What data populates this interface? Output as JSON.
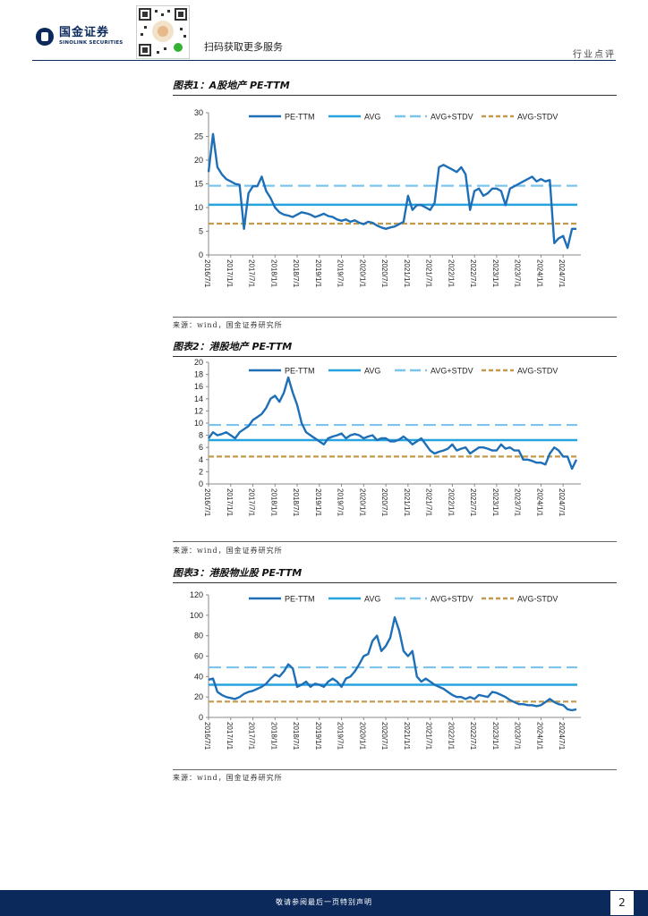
{
  "header": {
    "company_cn": "国金证券",
    "company_en": "SINOLINK SECURITIES",
    "qr_caption": "扫码获取更多服务",
    "report_type": "行业点评"
  },
  "figures": [
    {
      "title": "图表1：A股地产 PE-TTM",
      "source": "来源：wind，国金证券研究所"
    },
    {
      "title": "图表2：港股地产 PE-TTM",
      "source": "来源：wind，国金证券研究所"
    },
    {
      "title": "图表3：港股物业股 PE-TTM",
      "source": ""
    }
  ],
  "source_last": "来源：wind，国金证券研究所",
  "footer": {
    "disclaimer": "敬请参阅最后一页特别声明",
    "page_number": "2"
  },
  "colors": {
    "pe": "#1f6fb7",
    "avg": "#27a3e0",
    "avg_plus": "#7cc4ee",
    "avg_minus": "#c49a4a",
    "brand": "#0b2a5b"
  },
  "chart_data": [
    {
      "type": "line",
      "title": "A股地产 PE-TTM",
      "legend": [
        "PE-TTM",
        "AVG",
        "AVG+STDV",
        "AVG-STDV"
      ],
      "x_tick_labels": [
        "2016/7/1",
        "2017/1/1",
        "2017/7/1",
        "2018/1/1",
        "2018/7/1",
        "2019/1/1",
        "2019/7/1",
        "2020/1/1",
        "2020/7/1",
        "2021/1/1",
        "2021/7/1",
        "2022/1/1",
        "2022/7/1",
        "2023/1/1",
        "2023/7/1",
        "2024/1/1",
        "2024/7/1"
      ],
      "y_ticks": [
        0,
        5,
        10,
        15,
        20,
        25,
        30
      ],
      "ylim": [
        0,
        30
      ],
      "avg": 10.6,
      "avg_plus": 14.6,
      "avg_minus": 6.6,
      "x": [
        0,
        0.2,
        0.4,
        0.6,
        0.8,
        1.0,
        1.2,
        1.4,
        1.6,
        1.8,
        2.0,
        2.2,
        2.4,
        2.6,
        2.8,
        3.0,
        3.2,
        3.4,
        3.6,
        3.8,
        4.0,
        4.2,
        4.4,
        4.6,
        4.8,
        5.0,
        5.2,
        5.4,
        5.6,
        5.8,
        6.0,
        6.2,
        6.4,
        6.6,
        6.8,
        7.0,
        7.2,
        7.4,
        7.6,
        7.8,
        8.0,
        8.2,
        8.4,
        8.6,
        8.8,
        9.0,
        9.2,
        9.4,
        9.6,
        9.8,
        10.0,
        10.2,
        10.4,
        10.6,
        10.8,
        11.0,
        11.2,
        11.4,
        11.6,
        11.8,
        12.0,
        12.2,
        12.4,
        12.6,
        12.8,
        13.0,
        13.2,
        13.4,
        13.6,
        13.8,
        14.0,
        14.2,
        14.4,
        14.6,
        14.8,
        15.0,
        15.2,
        15.4,
        15.6,
        15.8,
        16.0,
        16.2,
        16.4,
        16.6
      ],
      "y": [
        17.5,
        25.5,
        18.5,
        17,
        16,
        15.5,
        15,
        14.8,
        5.5,
        13,
        14.5,
        14.5,
        16.5,
        13.5,
        12,
        10,
        9,
        8.5,
        8.3,
        8,
        8.5,
        9,
        8.8,
        8.5,
        8,
        8.3,
        8.7,
        8.2,
        8,
        7.5,
        7.2,
        7.5,
        7,
        7.3,
        6.8,
        6.5,
        7,
        6.8,
        6.2,
        5.8,
        5.5,
        5.8,
        6,
        6.5,
        7,
        12.5,
        9.5,
        10.5,
        10.5,
        10,
        9.5,
        11,
        18.5,
        19,
        18.5,
        18,
        17.5,
        18.5,
        17,
        9.5,
        13.5,
        14,
        12.5,
        13,
        14,
        14,
        13.5,
        10.5,
        14,
        14.5,
        15,
        15.5,
        16,
        16.5,
        15.5,
        16,
        15.5,
        15.8,
        2.5,
        3.5,
        4,
        1.5,
        5.5,
        5.5
      ]
    },
    {
      "type": "line",
      "title": "港股地产 PE-TTM",
      "legend": [
        "PE-TTM",
        "AVG",
        "AVG+STDV",
        "AVG-STDV"
      ],
      "x_tick_labels": [
        "2016/7/1",
        "2017/1/1",
        "2017/7/1",
        "2018/1/1",
        "2018/7/1",
        "2019/1/1",
        "2019/7/1",
        "2020/1/1",
        "2020/7/1",
        "2021/1/1",
        "2021/7/1",
        "2022/1/1",
        "2022/7/1",
        "2023/1/1",
        "2023/7/1",
        "2024/1/1",
        "2024/7/1"
      ],
      "y_ticks": [
        0,
        2,
        4,
        6,
        8,
        10,
        12,
        14,
        16,
        18,
        20
      ],
      "ylim": [
        0,
        20
      ],
      "avg": 7.2,
      "avg_plus": 9.7,
      "avg_minus": 4.5,
      "x": [
        0,
        0.2,
        0.4,
        0.6,
        0.8,
        1.0,
        1.2,
        1.4,
        1.6,
        1.8,
        2.0,
        2.2,
        2.4,
        2.6,
        2.8,
        3.0,
        3.2,
        3.4,
        3.6,
        3.8,
        4.0,
        4.2,
        4.4,
        4.6,
        4.8,
        5.0,
        5.2,
        5.4,
        5.6,
        5.8,
        6.0,
        6.2,
        6.4,
        6.6,
        6.8,
        7.0,
        7.2,
        7.4,
        7.6,
        7.8,
        8.0,
        8.2,
        8.4,
        8.6,
        8.8,
        9.0,
        9.2,
        9.4,
        9.6,
        9.8,
        10.0,
        10.2,
        10.4,
        10.6,
        10.8,
        11.0,
        11.2,
        11.4,
        11.6,
        11.8,
        12.0,
        12.2,
        12.4,
        12.6,
        12.8,
        13.0,
        13.2,
        13.4,
        13.6,
        13.8,
        14.0,
        14.2,
        14.4,
        14.6,
        14.8,
        15.0,
        15.2,
        15.4,
        15.6,
        15.8,
        16.0,
        16.2,
        16.4,
        16.6
      ],
      "y": [
        7.5,
        8.5,
        8,
        8.2,
        8.5,
        8,
        7.5,
        8.5,
        9,
        9.5,
        10.5,
        11,
        11.5,
        12.5,
        14,
        14.5,
        13.5,
        15,
        17.5,
        15,
        13,
        10,
        8.5,
        8,
        7.5,
        7,
        6.5,
        7.5,
        7.8,
        8,
        8.3,
        7.5,
        8,
        8.2,
        8,
        7.5,
        7.8,
        8,
        7.2,
        7.5,
        7.5,
        7,
        7,
        7.3,
        7.8,
        7.2,
        6.5,
        7,
        7.5,
        6.5,
        5.5,
        5,
        5.3,
        5.5,
        5.8,
        6.5,
        5.5,
        5.8,
        6,
        5,
        5.5,
        6,
        6,
        5.8,
        5.5,
        5.5,
        6.5,
        5.8,
        6,
        5.5,
        5.5,
        4,
        4,
        3.8,
        3.5,
        3.5,
        3.2,
        5,
        6,
        5.5,
        4.5,
        4.5,
        2.5,
        4
      ]
    },
    {
      "type": "line",
      "title": "港股物业股 PE-TTM",
      "legend": [
        "PE-TTM",
        "AVG",
        "AVG+STDV",
        "AVG-STDV"
      ],
      "x_tick_labels": [
        "2016/7/1",
        "2017/1/1",
        "2017/7/1",
        "2018/1/1",
        "2018/7/1",
        "2019/1/1",
        "2019/7/1",
        "2020/1/1",
        "2020/7/1",
        "2021/1/1",
        "2021/7/1",
        "2022/1/1",
        "2022/7/1",
        "2023/1/1",
        "2023/7/1",
        "2024/1/1",
        "2024/7/1"
      ],
      "y_ticks": [
        0,
        20,
        40,
        60,
        80,
        100,
        120
      ],
      "ylim": [
        0,
        120
      ],
      "avg": 32,
      "avg_plus": 49,
      "avg_minus": 15.5,
      "x": [
        0,
        0.2,
        0.4,
        0.6,
        0.8,
        1.0,
        1.2,
        1.4,
        1.6,
        1.8,
        2.0,
        2.2,
        2.4,
        2.6,
        2.8,
        3.0,
        3.2,
        3.4,
        3.6,
        3.8,
        4.0,
        4.2,
        4.4,
        4.6,
        4.8,
        5.0,
        5.2,
        5.4,
        5.6,
        5.8,
        6.0,
        6.2,
        6.4,
        6.6,
        6.8,
        7.0,
        7.2,
        7.4,
        7.6,
        7.8,
        8.0,
        8.2,
        8.4,
        8.6,
        8.8,
        9.0,
        9.2,
        9.4,
        9.6,
        9.8,
        10.0,
        10.2,
        10.4,
        10.6,
        10.8,
        11.0,
        11.2,
        11.4,
        11.6,
        11.8,
        12.0,
        12.2,
        12.4,
        12.6,
        12.8,
        13.0,
        13.2,
        13.4,
        13.6,
        13.8,
        14.0,
        14.2,
        14.4,
        14.6,
        14.8,
        15.0,
        15.2,
        15.4,
        15.6,
        15.8,
        16.0,
        16.2,
        16.4,
        16.6
      ],
      "y": [
        37,
        38,
        25,
        22,
        20,
        19,
        18,
        20,
        23,
        25,
        26,
        28,
        30,
        33,
        38,
        42,
        40,
        45,
        52,
        48,
        30,
        32,
        35,
        30,
        33,
        32,
        30,
        35,
        38,
        35,
        30,
        38,
        40,
        45,
        52,
        60,
        62,
        75,
        80,
        65,
        70,
        78,
        98,
        85,
        65,
        60,
        65,
        40,
        35,
        38,
        35,
        32,
        30,
        28,
        25,
        22,
        20,
        20,
        18,
        20,
        18,
        22,
        21,
        20,
        25,
        24,
        22,
        20,
        17,
        15,
        13,
        13,
        12,
        12,
        11,
        12,
        15,
        18,
        15,
        13,
        12,
        8,
        7,
        8
      ]
    }
  ]
}
